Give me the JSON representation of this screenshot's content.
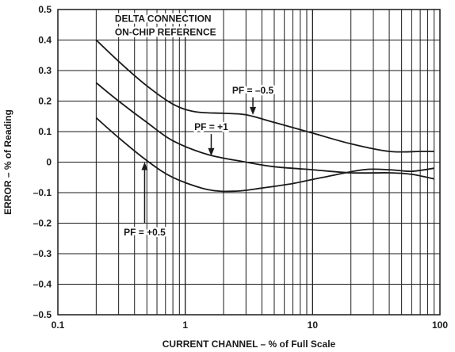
{
  "chart_data": {
    "type": "line",
    "title": "",
    "xlabel": "CURRENT CHANNEL – % of Full Scale",
    "ylabel": "ERROR – % of Reading",
    "x_scale": "log",
    "xlim": [
      0.1,
      100
    ],
    "ylim": [
      -0.5,
      0.5
    ],
    "grid": true,
    "x_ticks": [
      {
        "value": 0.1,
        "label": "0.1"
      },
      {
        "value": 1,
        "label": "1"
      },
      {
        "value": 10,
        "label": "10"
      },
      {
        "value": 100,
        "label": "100"
      }
    ],
    "y_ticks": [
      {
        "value": 0.5,
        "label": "0.5"
      },
      {
        "value": 0.4,
        "label": "0.4"
      },
      {
        "value": 0.3,
        "label": "0.3"
      },
      {
        "value": 0.2,
        "label": "0.2"
      },
      {
        "value": 0.1,
        "label": "0.1"
      },
      {
        "value": 0,
        "label": "0"
      },
      {
        "value": -0.1,
        "label": "–0.1"
      },
      {
        "value": -0.2,
        "label": "–0.2"
      },
      {
        "value": -0.3,
        "label": "–0.3"
      },
      {
        "value": -0.4,
        "label": "–0.4"
      },
      {
        "value": -0.5,
        "label": "–0.5"
      }
    ],
    "series": [
      {
        "name": "PF = –0.5",
        "points": [
          [
            0.2,
            0.4
          ],
          [
            0.3,
            0.33
          ],
          [
            0.5,
            0.25
          ],
          [
            0.8,
            0.19
          ],
          [
            1.2,
            0.165
          ],
          [
            2,
            0.16
          ],
          [
            3,
            0.155
          ],
          [
            5,
            0.13
          ],
          [
            10,
            0.095
          ],
          [
            20,
            0.06
          ],
          [
            40,
            0.035
          ],
          [
            70,
            0.035
          ],
          [
            90,
            0.035
          ]
        ]
      },
      {
        "name": "PF = +1",
        "points": [
          [
            0.2,
            0.26
          ],
          [
            0.3,
            0.2
          ],
          [
            0.5,
            0.13
          ],
          [
            0.8,
            0.07
          ],
          [
            1.5,
            0.025
          ],
          [
            3,
            0.0
          ],
          [
            5,
            -0.015
          ],
          [
            10,
            -0.025
          ],
          [
            20,
            -0.035
          ],
          [
            40,
            -0.035
          ],
          [
            60,
            -0.04
          ],
          [
            90,
            -0.055
          ]
        ]
      },
      {
        "name": "PF = +0.5",
        "points": [
          [
            0.2,
            0.145
          ],
          [
            0.3,
            0.08
          ],
          [
            0.5,
            0.005
          ],
          [
            0.8,
            -0.05
          ],
          [
            1.5,
            -0.09
          ],
          [
            2.5,
            -0.095
          ],
          [
            4,
            -0.085
          ],
          [
            7,
            -0.07
          ],
          [
            12,
            -0.05
          ],
          [
            25,
            -0.025
          ],
          [
            40,
            -0.025
          ],
          [
            60,
            -0.03
          ],
          [
            90,
            -0.02
          ]
        ]
      }
    ],
    "annotations": [
      {
        "text": "DELTA CONNECTION",
        "type": "note",
        "x": 0.28,
        "y": 0.46
      },
      {
        "text": "ON-CHIP REFERENCE",
        "type": "note",
        "x": 0.28,
        "y": 0.415
      },
      {
        "text": "PF = –0.5",
        "type": "callout",
        "x": 3.4,
        "y": 0.225,
        "target_x": 3.4,
        "target_y": 0.155
      },
      {
        "text": "PF = +1",
        "type": "callout",
        "x": 1.6,
        "y": 0.105,
        "target_x": 1.6,
        "target_y": 0.02
      },
      {
        "text": "PF = +0.5",
        "type": "callout",
        "x": 0.48,
        "y": -0.24,
        "target_x": 0.48,
        "target_y": 0.0
      }
    ]
  }
}
